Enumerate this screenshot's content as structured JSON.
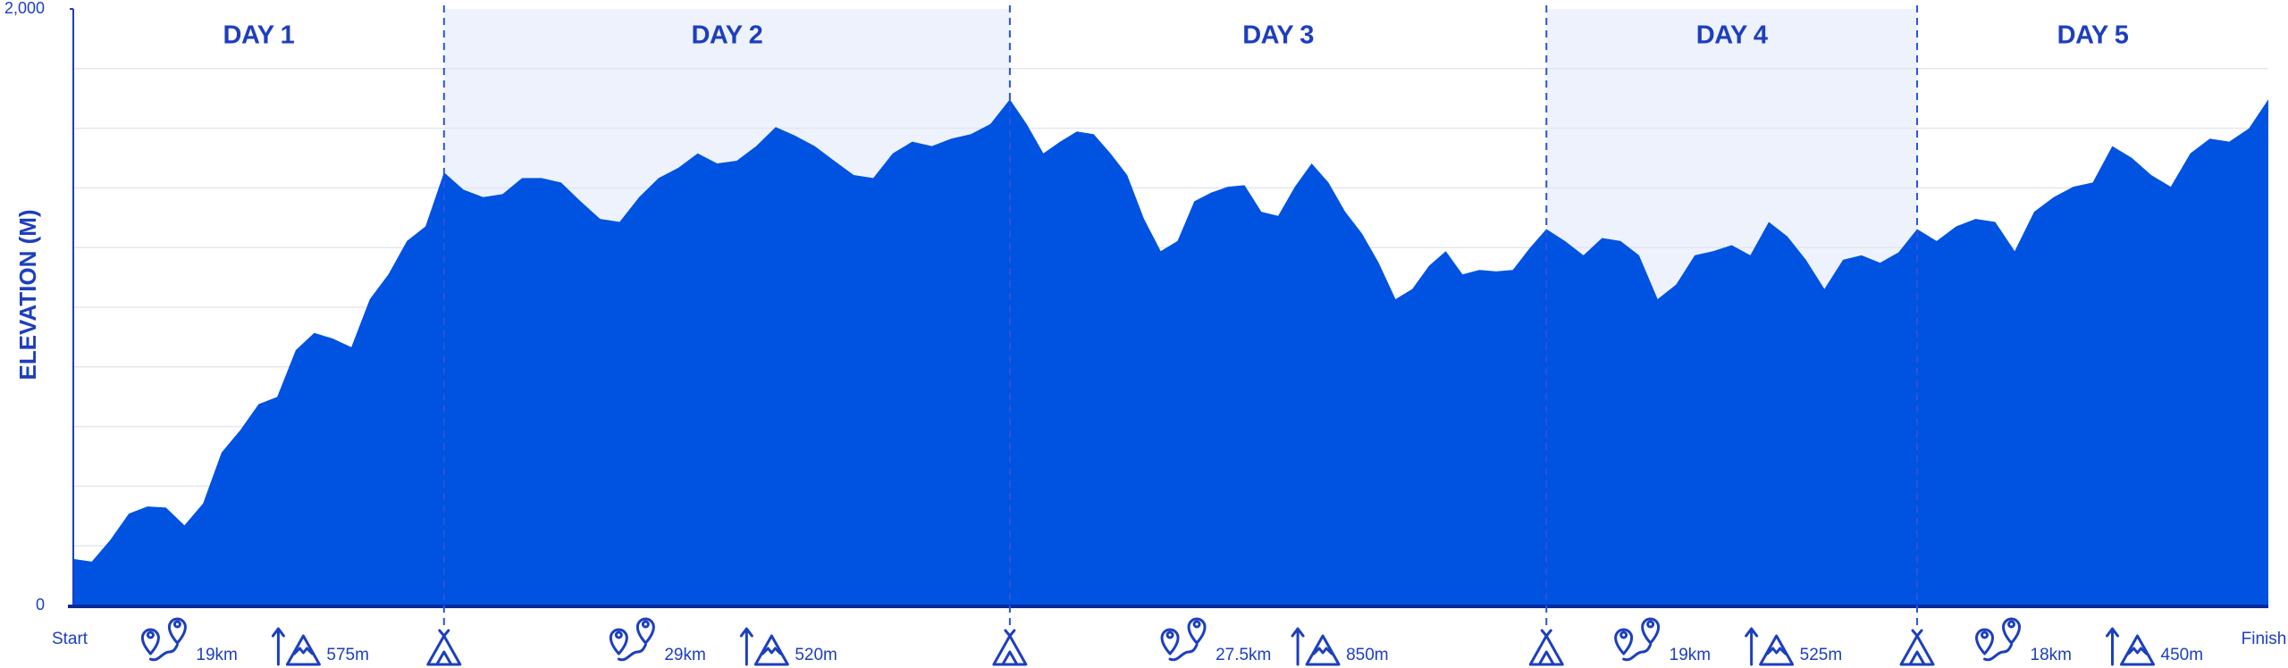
{
  "chart_data": {
    "type": "area",
    "y_label": "ELEVATION (M)",
    "ylim": [
      0,
      2000
    ],
    "yticks": [
      0,
      {
        "value": 2000,
        "label": "2,000"
      }
    ],
    "gridlines": [
      200,
      400,
      600,
      800,
      1000,
      1200,
      1400,
      1600,
      1800
    ],
    "color": "#0052e0",
    "shade_color": "#eef2fd",
    "start_label": "Start",
    "finish_label": "Finish",
    "days": [
      {
        "name": "DAY 1",
        "distance": 19,
        "distance_label": "19km",
        "ascent": 575,
        "ascent_label": "575m",
        "shaded": false,
        "values": [
          156,
          147,
          220,
          308,
          332,
          328,
          269,
          342,
          513,
          587,
          675,
          699,
          856,
          914,
          895,
          866,
          1027,
          1110,
          1222,
          1271,
          1452
        ]
      },
      {
        "name": "DAY 2",
        "distance": 29,
        "distance_label": "29km",
        "ascent": 520,
        "ascent_label": "520m",
        "shaded": true,
        "values": [
          1394,
          1369,
          1379,
          1433,
          1433,
          1418,
          1355,
          1296,
          1286,
          1369,
          1433,
          1467,
          1516,
          1482,
          1491,
          1540,
          1604,
          1575,
          1540,
          1491,
          1443,
          1433,
          1516,
          1555,
          1540,
          1565,
          1580,
          1614,
          1697
        ]
      },
      {
        "name": "DAY 3",
        "distance": 27.5,
        "distance_label": "27.5km",
        "ascent": 850,
        "ascent_label": "850m",
        "shaded": false,
        "values": [
          1614,
          1516,
          1555,
          1589,
          1580,
          1516,
          1443,
          1296,
          1188,
          1222,
          1355,
          1384,
          1404,
          1409,
          1320,
          1306,
          1404,
          1482,
          1418,
          1320,
          1247,
          1149,
          1027,
          1061,
          1139,
          1188,
          1110,
          1125,
          1120,
          1125,
          1198,
          1262
        ]
      },
      {
        "name": "DAY 4",
        "distance": 19,
        "distance_label": "19km",
        "ascent": 525,
        "ascent_label": "525m",
        "shaded": true,
        "values": [
          1222,
          1174,
          1232,
          1222,
          1174,
          1027,
          1076,
          1174,
          1188,
          1208,
          1174,
          1286,
          1237,
          1159,
          1061,
          1159,
          1174,
          1149,
          1184,
          1262
        ]
      },
      {
        "name": "DAY 5",
        "distance": 18,
        "distance_label": "18km",
        "ascent": 450,
        "ascent_label": "450m",
        "shaded": false,
        "values": [
          1222,
          1271,
          1296,
          1286,
          1188,
          1320,
          1369,
          1404,
          1418,
          1540,
          1501,
          1443,
          1404,
          1516,
          1565,
          1555,
          1599,
          1697
        ]
      }
    ]
  }
}
